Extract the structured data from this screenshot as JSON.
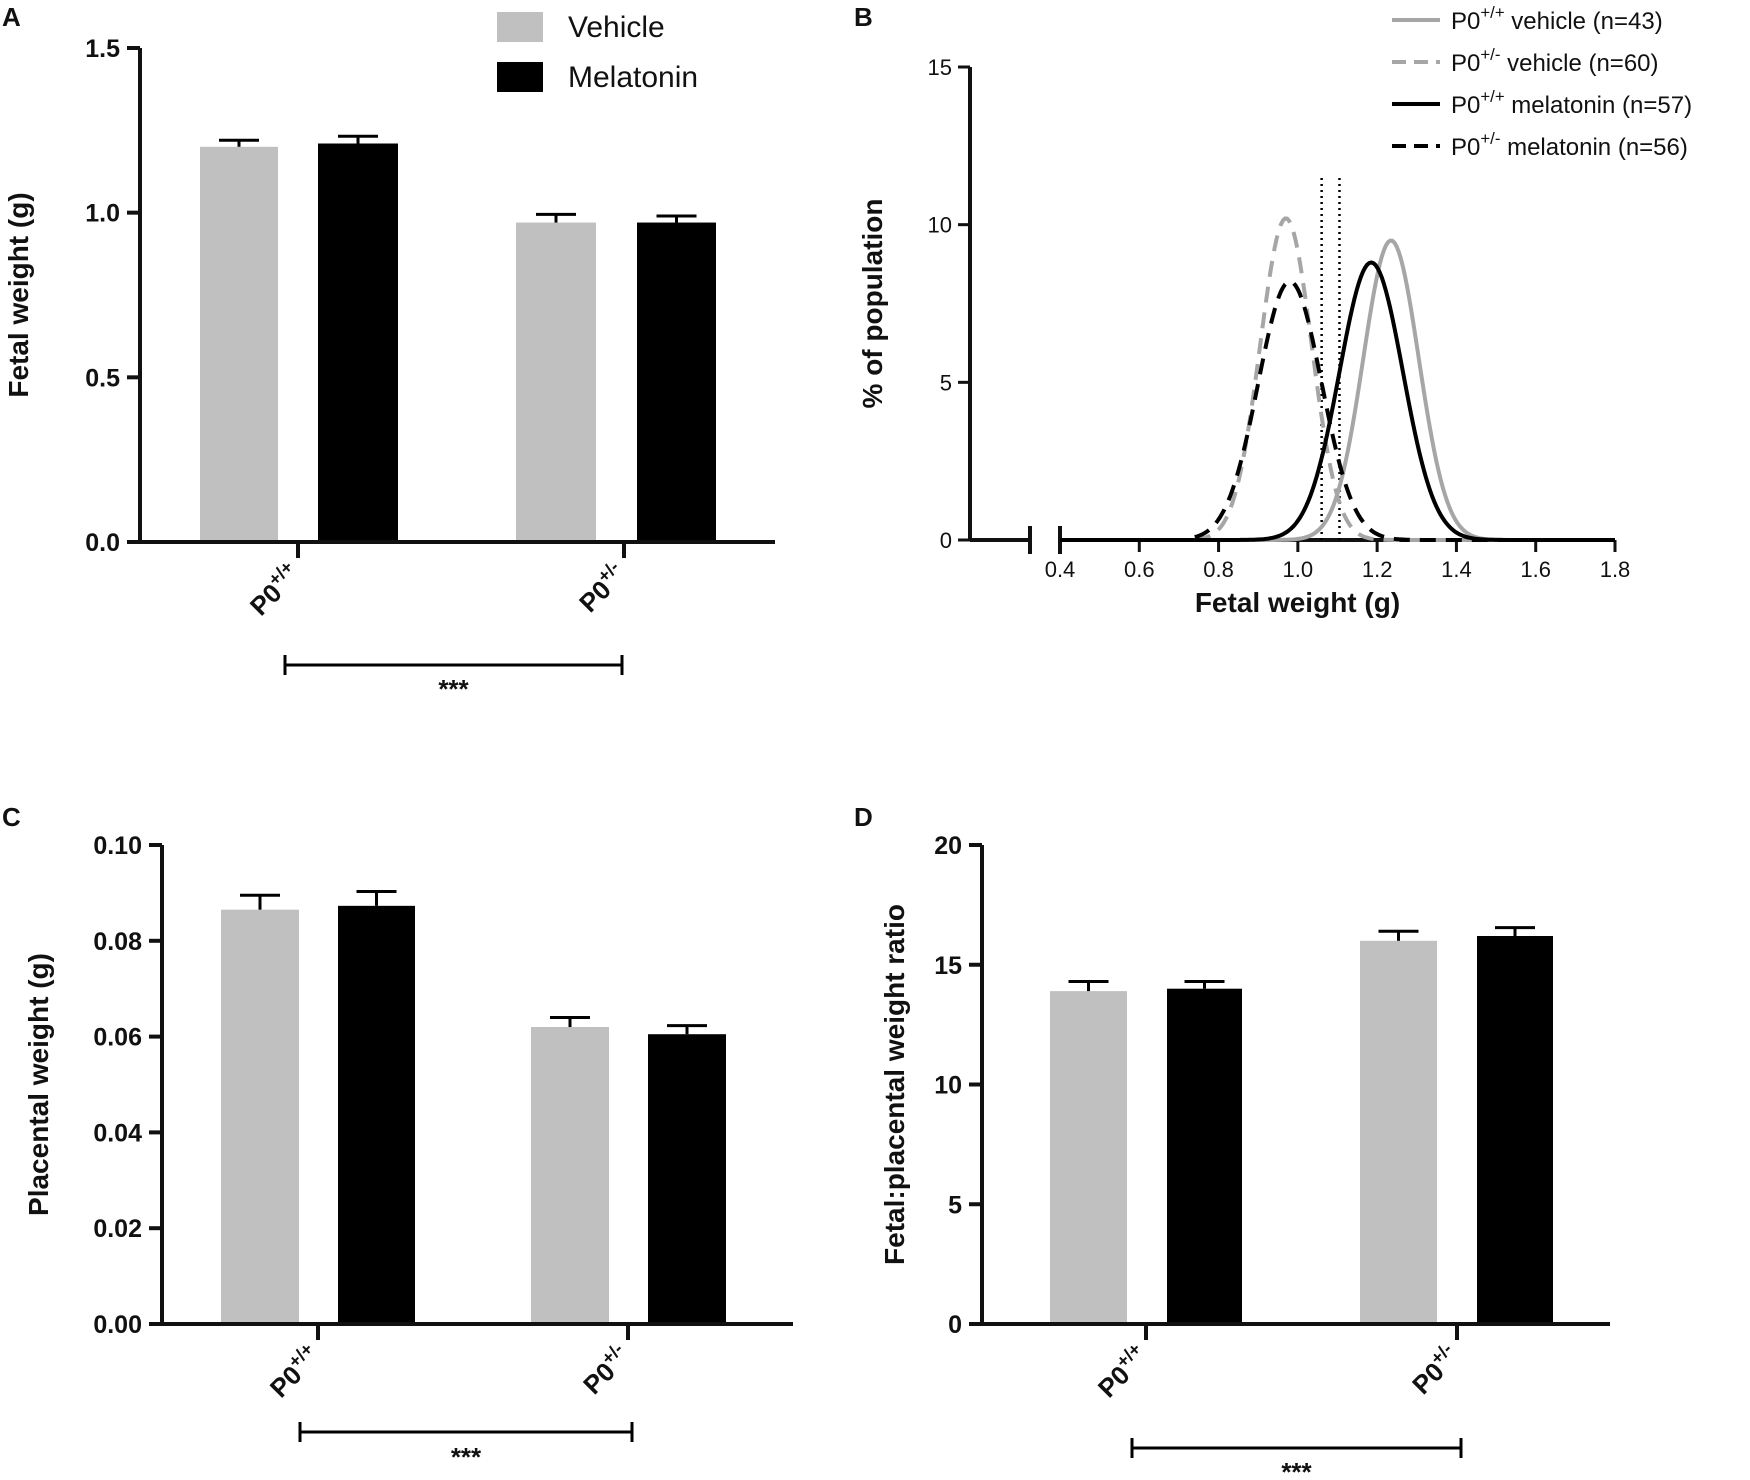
{
  "colors": {
    "vehicle": "#c0c0c0",
    "melatonin": "#000000",
    "gray_line": "#a6a6a6",
    "axis": "#111111"
  },
  "legend": {
    "vehicle": "Vehicle",
    "melatonin": "Melatonin"
  },
  "chart_data": [
    {
      "panel": "A",
      "type": "bar",
      "ylabel": "Fetal weight (g)",
      "ylim": [
        0,
        1.5
      ],
      "yticks": [
        "0.0",
        "0.5",
        "1.0",
        "1.5"
      ],
      "ytick_values": [
        0,
        0.5,
        1.0,
        1.5
      ],
      "categories": [
        {
          "base": "P0",
          "sup": "+/+"
        },
        {
          "base": "P0",
          "sup": "+/-"
        }
      ],
      "series": [
        {
          "name": "Vehicle",
          "values": [
            1.2,
            0.97
          ],
          "errors": [
            0.02,
            0.025
          ]
        },
        {
          "name": "Melatonin",
          "values": [
            1.21,
            0.97
          ],
          "errors": [
            0.022,
            0.02
          ]
        }
      ],
      "significance": "***"
    },
    {
      "panel": "B",
      "type": "line",
      "xlabel": "Fetal weight (g)",
      "ylabel": "% of population",
      "xlim": [
        0.4,
        1.8
      ],
      "ylim": [
        0,
        15
      ],
      "xticks": [
        "0.4",
        "0.6",
        "0.8",
        "1.0",
        "1.2",
        "1.4",
        "1.6",
        "1.8"
      ],
      "xtick_values": [
        0.4,
        0.6,
        0.8,
        1.0,
        1.2,
        1.4,
        1.6,
        1.8
      ],
      "yticks": [
        "0",
        "5",
        "10",
        "15"
      ],
      "ytick_values": [
        0,
        5,
        10,
        15
      ],
      "vlines": [
        1.06,
        1.105
      ],
      "series": [
        {
          "label": {
            "base": "P0",
            "sup": "+/+",
            "rest": " vehicle (n=43)"
          },
          "mean": 1.235,
          "sd": 0.07,
          "peak": 9.5,
          "color": "gray",
          "dash": false
        },
        {
          "label": {
            "base": "P0",
            "sup": "+/-",
            "rest": " vehicle (n=60)"
          },
          "mean": 0.97,
          "sd": 0.065,
          "peak": 10.2,
          "color": "gray",
          "dash": true
        },
        {
          "label": {
            "base": "P0",
            "sup": "+/+",
            "rest": " melatonin (n=57)"
          },
          "mean": 1.185,
          "sd": 0.08,
          "peak": 8.8,
          "color": "black",
          "dash": false
        },
        {
          "label": {
            "base": "P0",
            "sup": "+/-",
            "rest": " melatonin (n=56)"
          },
          "mean": 0.98,
          "sd": 0.08,
          "peak": 8.2,
          "color": "black",
          "dash": true
        }
      ]
    },
    {
      "panel": "C",
      "type": "bar",
      "ylabel": "Placental weight (g)",
      "ylim": [
        0,
        0.1
      ],
      "yticks": [
        "0.00",
        "0.02",
        "0.04",
        "0.06",
        "0.08",
        "0.10"
      ],
      "ytick_values": [
        0,
        0.02,
        0.04,
        0.06,
        0.08,
        0.1
      ],
      "categories": [
        {
          "base": "P0",
          "sup": "+/+"
        },
        {
          "base": "P0",
          "sup": "+/-"
        }
      ],
      "series": [
        {
          "name": "Vehicle",
          "values": [
            0.0865,
            0.062
          ],
          "errors": [
            0.003,
            0.002
          ]
        },
        {
          "name": "Melatonin",
          "values": [
            0.0873,
            0.0605
          ],
          "errors": [
            0.003,
            0.0018
          ]
        }
      ],
      "significance": "***"
    },
    {
      "panel": "D",
      "type": "bar",
      "ylabel": "Fetal:placental weight ratio",
      "ylim": [
        0,
        20
      ],
      "yticks": [
        "0",
        "5",
        "10",
        "15",
        "20"
      ],
      "ytick_values": [
        0,
        5,
        10,
        15,
        20
      ],
      "categories": [
        {
          "base": "P0",
          "sup": "+/+"
        },
        {
          "base": "P0",
          "sup": "+/-"
        }
      ],
      "series": [
        {
          "name": "Vehicle",
          "values": [
            13.9,
            16.0
          ],
          "errors": [
            0.4,
            0.4
          ]
        },
        {
          "name": "Melatonin",
          "values": [
            14.0,
            16.2
          ],
          "errors": [
            0.3,
            0.35
          ]
        }
      ],
      "significance": "***"
    }
  ]
}
